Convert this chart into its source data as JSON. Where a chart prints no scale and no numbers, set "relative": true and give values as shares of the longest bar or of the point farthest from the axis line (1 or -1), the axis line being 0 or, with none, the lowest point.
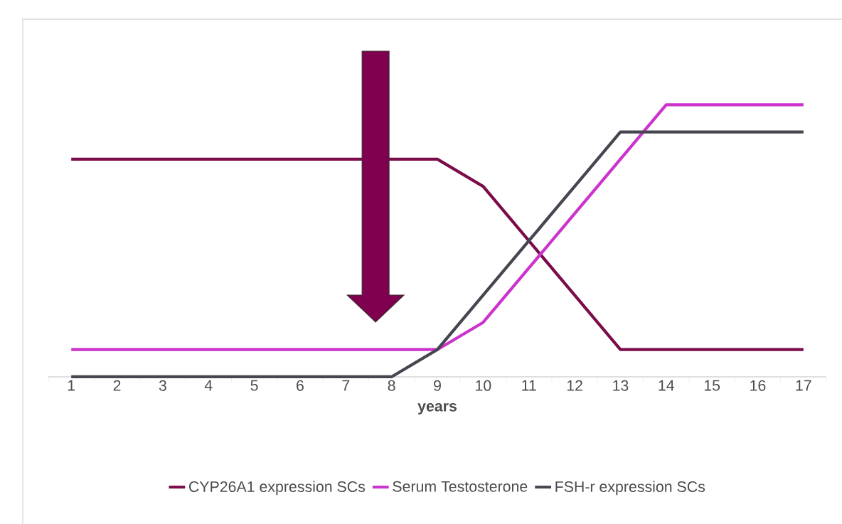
{
  "chart_data": {
    "type": "line",
    "relative": true,
    "xlabel": "years",
    "legend": "bottom",
    "marker": "none",
    "line_style": "solid",
    "categories": [
      "1",
      "2",
      "3",
      "4",
      "5",
      "6",
      "7",
      "8",
      "9",
      "10",
      "11",
      "12",
      "13",
      "14",
      "15",
      "16",
      "17"
    ],
    "series": [
      {
        "name": "CYP26A1 expression SCs",
        "color": "#7b0c4a",
        "values": [
          0.8,
          0.8,
          0.8,
          0.8,
          0.8,
          0.8,
          0.8,
          0.8,
          0.8,
          0.7,
          0.5,
          0.3,
          0.1,
          0.1,
          0.1,
          0.1,
          0.1
        ]
      },
      {
        "name": "Serum Testosterone",
        "color": "#cc33cc",
        "values": [
          0.1,
          0.1,
          0.1,
          0.1,
          0.1,
          0.1,
          0.1,
          0.1,
          0.1,
          0.2,
          0.4,
          0.6,
          0.8,
          1.0,
          1.0,
          1.0,
          1.0
        ]
      },
      {
        "name": "FSH-r expression SCs",
        "color": "#45464f",
        "values": [
          0,
          0,
          0,
          0,
          0,
          0,
          0,
          0,
          0.1,
          0.3,
          0.5,
          0.7,
          0.9,
          0.9,
          0.9,
          0.9,
          0.9
        ]
      }
    ]
  }
}
